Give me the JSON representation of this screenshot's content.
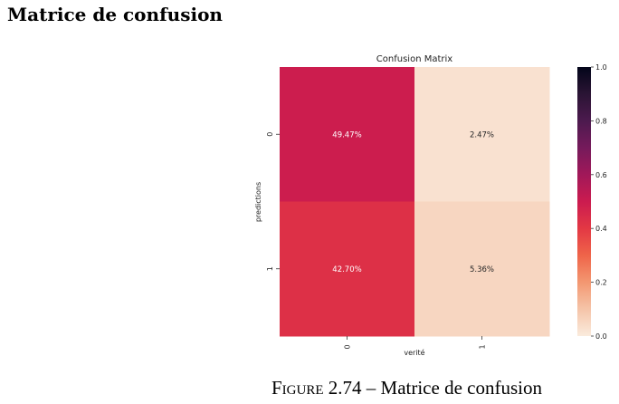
{
  "section_title": "Matrice de confusion",
  "caption": {
    "figure_label": "Figure 2.74",
    "separator": "–",
    "text": "Matrice de confusion"
  },
  "chart_data": {
    "type": "heatmap",
    "title": "Confusion Matrix",
    "xlabel": "verité",
    "ylabel": "predictions",
    "x_categories": [
      "0",
      "1"
    ],
    "y_categories": [
      "0",
      "1"
    ],
    "values": [
      [
        0.4947,
        0.0247
      ],
      [
        0.427,
        0.0536
      ]
    ],
    "annotations": [
      [
        "49.47%",
        "2.47%"
      ],
      [
        "42.70%",
        "5.36%"
      ]
    ],
    "colorbar": {
      "range": [
        0.0,
        1.0
      ],
      "ticks": [
        "0.0",
        "0.2",
        "0.4",
        "0.6",
        "0.8",
        "1.0"
      ],
      "colormap": "rocket_r"
    },
    "grid": false
  }
}
